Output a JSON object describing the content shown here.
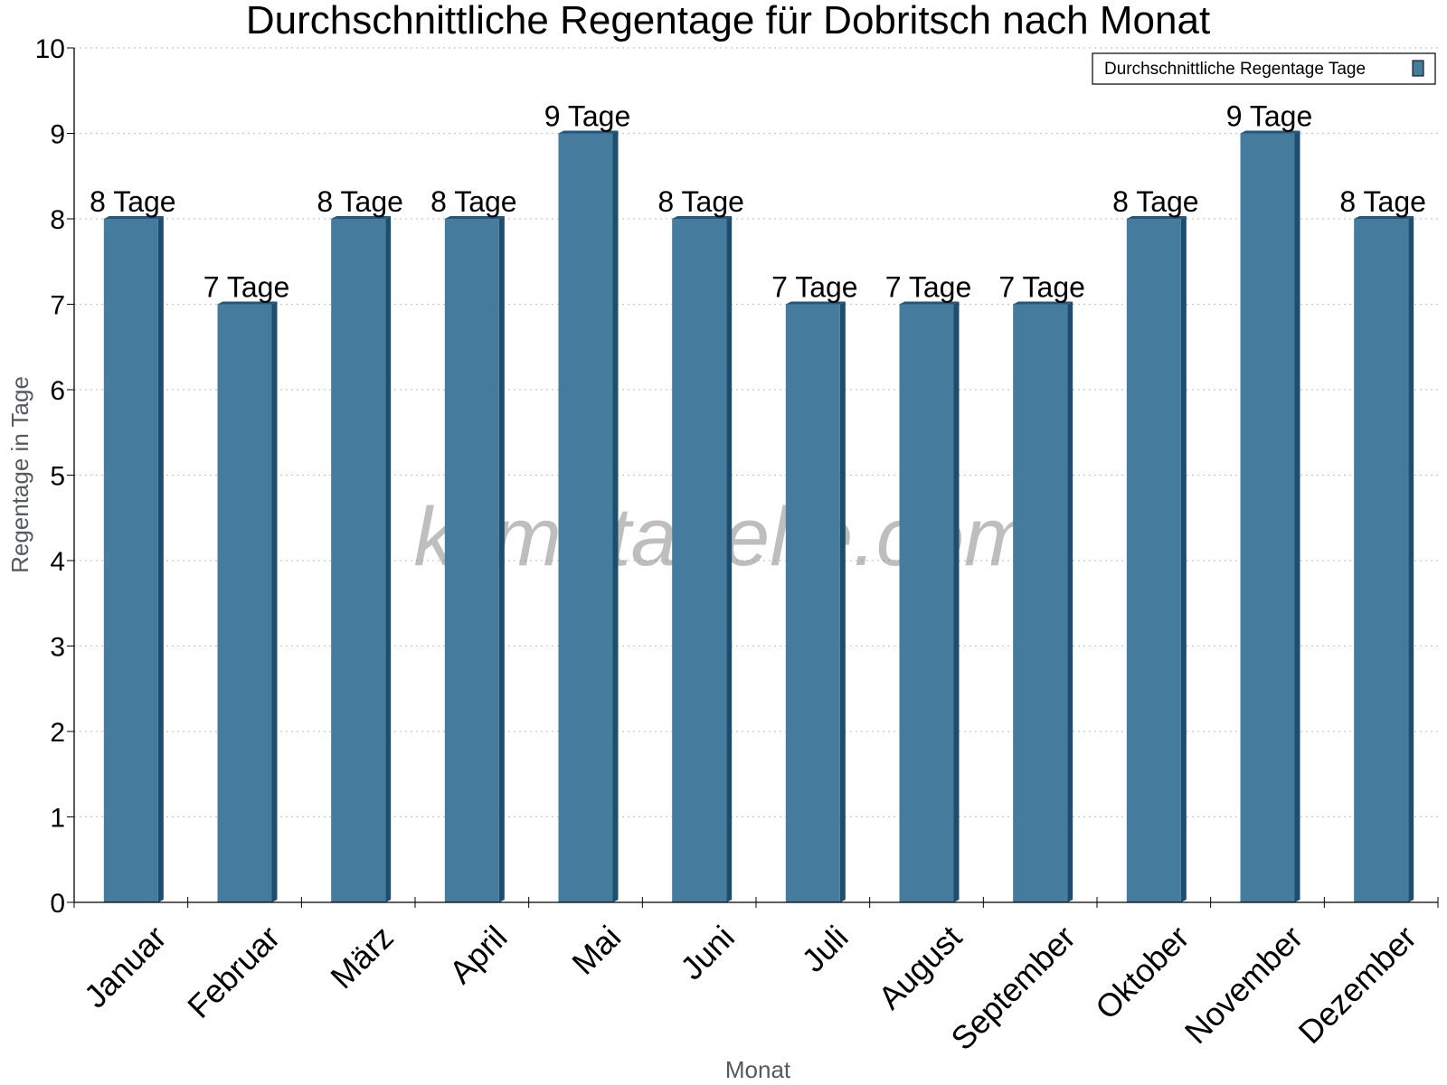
{
  "colors": {
    "bar_front": "#457b9d",
    "bar_side": "#1d4e6e",
    "bar_top": "#24577a",
    "grid": "#c8c8c8",
    "axis": "#000000"
  },
  "watermark": "klimatabelle.com",
  "chart_data": {
    "type": "bar",
    "title": "Durchschnittliche Regentage für Dobritsch nach Monat",
    "xlabel": "Monat",
    "ylabel": "Regentage in Tage",
    "ylim": [
      0,
      10
    ],
    "yticks": [
      "0",
      "1",
      "2",
      "3",
      "4",
      "5",
      "6",
      "7",
      "8",
      "9",
      "10"
    ],
    "grid": "horizontal dotted",
    "legend_position": "top-right",
    "categories": [
      "Januar",
      "Februar",
      "März",
      "April",
      "Mai",
      "Juni",
      "Juli",
      "August",
      "September",
      "Oktober",
      "November",
      "Dezember"
    ],
    "series": [
      {
        "name": "Durchschnittliche Regentage Tage",
        "values": [
          8,
          7,
          8,
          8,
          9,
          8,
          7,
          7,
          7,
          8,
          9,
          8
        ],
        "labels": [
          "8 Tage",
          "7 Tage",
          "8 Tage",
          "8 Tage",
          "9 Tage",
          "8 Tage",
          "7 Tage",
          "7 Tage",
          "7 Tage",
          "8 Tage",
          "9 Tage",
          "8 Tage"
        ]
      }
    ]
  }
}
